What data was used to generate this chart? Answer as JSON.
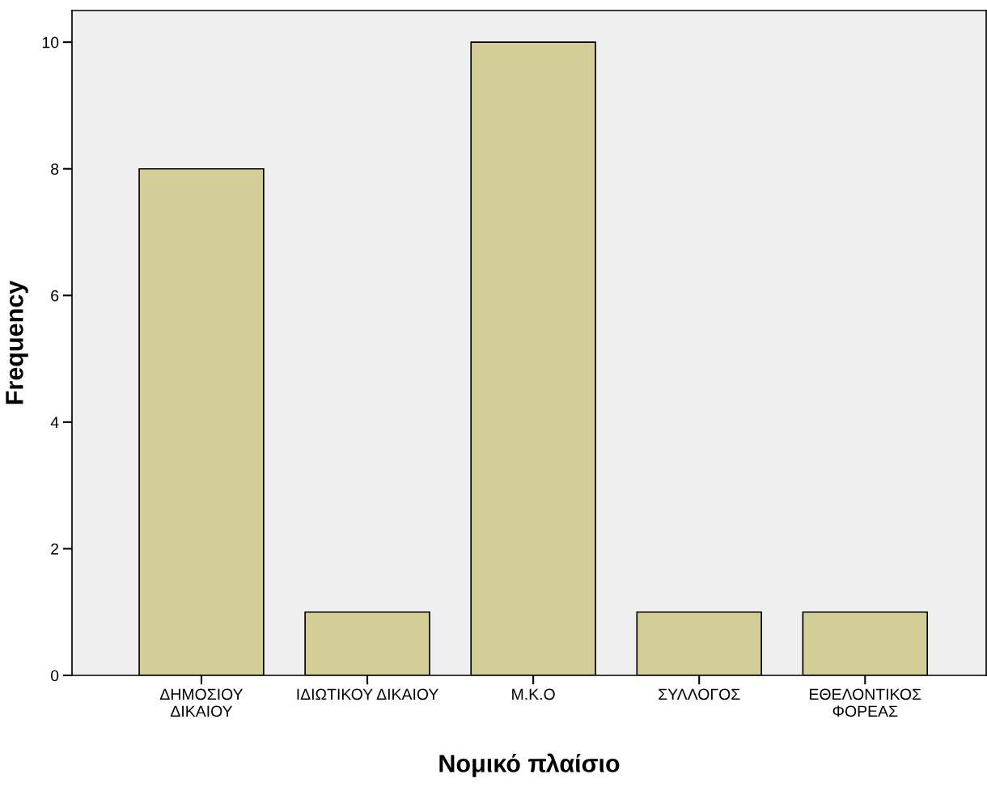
{
  "chart_data": {
    "type": "bar",
    "xlabel": "Νομικό πλαίσιο",
    "ylabel": "Frequency",
    "categories": [
      "ΔΗΜΟΣΙΟΥ\nΔΙΚΑΙΟΥ",
      "ΙΔΙΩΤΙΚΟΥ ΔΙΚΑΙΟΥ",
      "Μ.Κ.Ο",
      "ΣΥΛΛΟΓΟΣ",
      "ΕΘΕΛΟΝΤΙΚΟΣ\nΦΟΡΕΑΣ"
    ],
    "values": [
      8,
      1,
      10,
      1,
      1
    ],
    "color": "#d3ce97",
    "ylim": [
      0,
      10.5
    ],
    "yticks": [
      0,
      2,
      4,
      6,
      8,
      10
    ],
    "grid": false,
    "legend": false
  }
}
